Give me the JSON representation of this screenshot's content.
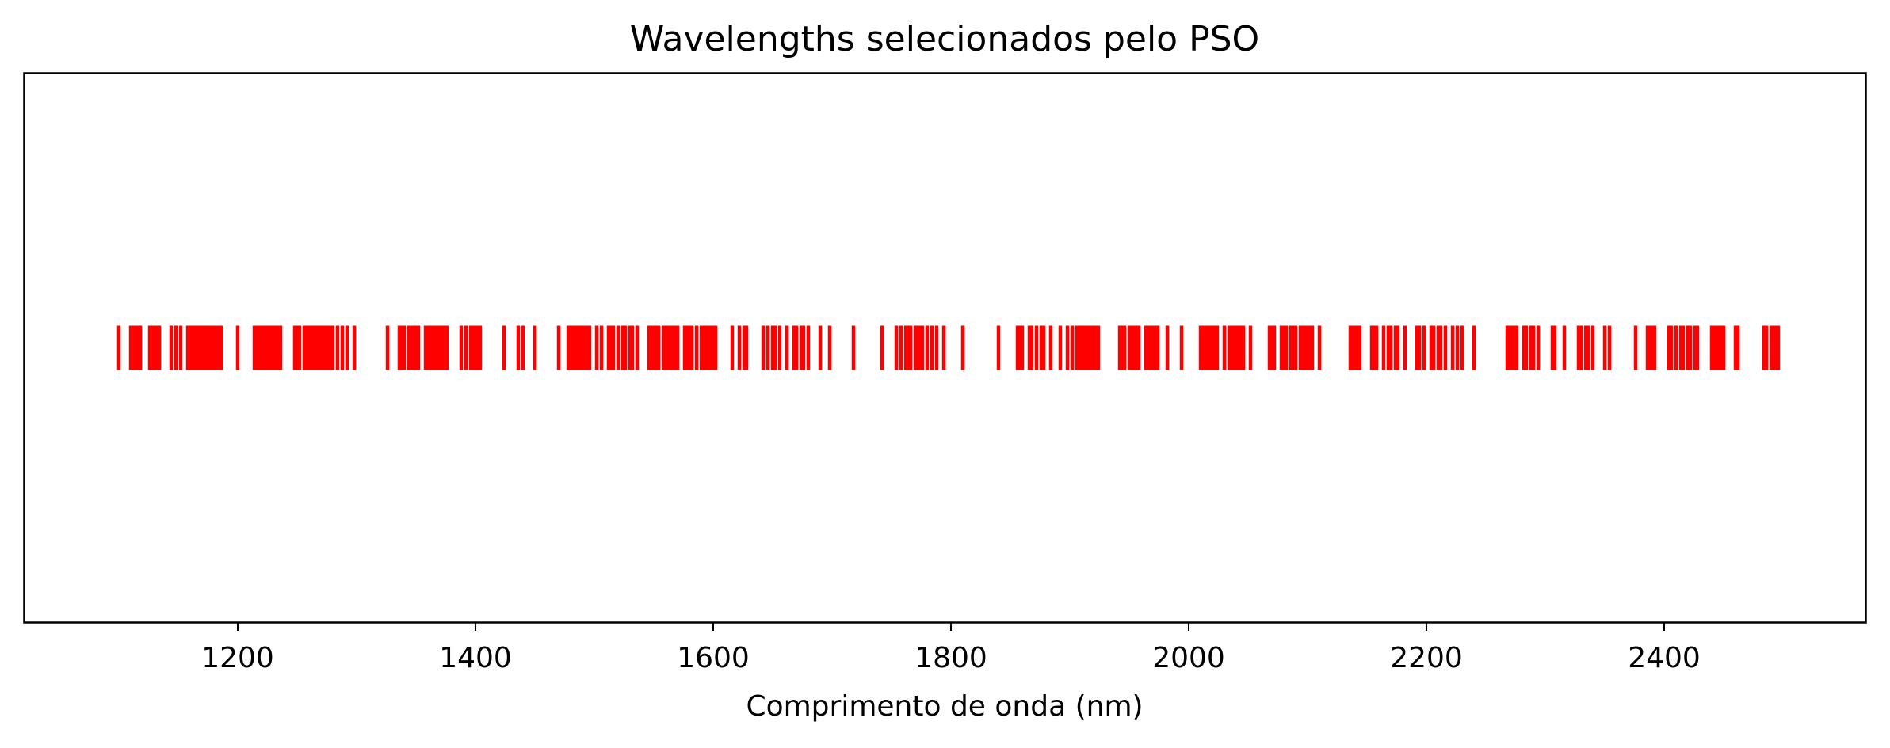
{
  "chart_data": {
    "type": "scatter",
    "mark": "event-lines",
    "title": "Wavelengths selecionados pelo PSO",
    "xlabel": "Comprimento de onda (nm)",
    "ylabel": "",
    "xlim": [
      1020,
      2570
    ],
    "xticks": [
      1200,
      1400,
      1600,
      1800,
      2000,
      2200,
      2400
    ],
    "yticks_visible": false,
    "grid": false,
    "legend": "none",
    "color": "#ff0000",
    "series": [
      {
        "x": [
          1100,
          1110,
          1112,
          1114,
          1116,
          1118,
          1126,
          1128,
          1130,
          1132,
          1134,
          1144,
          1148,
          1152,
          1158,
          1160,
          1162,
          1164,
          1166,
          1168,
          1170,
          1172,
          1174,
          1176,
          1178,
          1180,
          1182,
          1184,
          1186,
          1200,
          1214,
          1216,
          1218,
          1220,
          1222,
          1224,
          1226,
          1228,
          1230,
          1232,
          1234,
          1236,
          1248,
          1250,
          1252,
          1256,
          1258,
          1260,
          1262,
          1264,
          1266,
          1268,
          1270,
          1272,
          1274,
          1276,
          1278,
          1280,
          1284,
          1288,
          1292,
          1298,
          1326,
          1336,
          1338,
          1340,
          1344,
          1346,
          1348,
          1350,
          1352,
          1358,
          1360,
          1362,
          1364,
          1366,
          1368,
          1370,
          1372,
          1374,
          1376,
          1388,
          1392,
          1396,
          1398,
          1400,
          1402,
          1404,
          1424,
          1436,
          1440,
          1450,
          1470,
          1478,
          1480,
          1482,
          1484,
          1486,
          1488,
          1490,
          1492,
          1494,
          1496,
          1502,
          1506,
          1512,
          1514,
          1516,
          1520,
          1524,
          1526,
          1530,
          1532,
          1536,
          1546,
          1548,
          1550,
          1552,
          1554,
          1558,
          1560,
          1562,
          1564,
          1566,
          1568,
          1570,
          1576,
          1578,
          1580,
          1582,
          1586,
          1590,
          1592,
          1594,
          1596,
          1598,
          1600,
          1602,
          1616,
          1622,
          1626,
          1628,
          1642,
          1646,
          1650,
          1652,
          1656,
          1662,
          1668,
          1670,
          1674,
          1676,
          1680,
          1690,
          1698,
          1718,
          1742,
          1754,
          1758,
          1762,
          1764,
          1766,
          1770,
          1772,
          1774,
          1776,
          1780,
          1784,
          1788,
          1794,
          1810,
          1840,
          1856,
          1858,
          1860,
          1866,
          1868,
          1872,
          1876,
          1878,
          1884,
          1892,
          1898,
          1902,
          1906,
          1908,
          1910,
          1912,
          1914,
          1916,
          1918,
          1920,
          1922,
          1924,
          1942,
          1944,
          1946,
          1950,
          1952,
          1954,
          1956,
          1958,
          1964,
          1966,
          1968,
          1970,
          1972,
          1974,
          1982,
          1994,
          2010,
          2012,
          2014,
          2016,
          2018,
          2020,
          2022,
          2024,
          2030,
          2034,
          2036,
          2038,
          2040,
          2042,
          2044,
          2046,
          2052,
          2068,
          2070,
          2072,
          2078,
          2080,
          2082,
          2086,
          2088,
          2090,
          2094,
          2096,
          2098,
          2100,
          2102,
          2104,
          2110,
          2136,
          2138,
          2140,
          2142,
          2144,
          2154,
          2156,
          2158,
          2164,
          2168,
          2170,
          2174,
          2176,
          2182,
          2192,
          2194,
          2198,
          2204,
          2206,
          2210,
          2212,
          2216,
          2222,
          2226,
          2230,
          2240,
          2268,
          2270,
          2272,
          2274,
          2276,
          2282,
          2284,
          2288,
          2290,
          2294,
          2306,
          2308,
          2316,
          2328,
          2330,
          2334,
          2336,
          2340,
          2350,
          2354,
          2376,
          2386,
          2388,
          2390,
          2392,
          2404,
          2406,
          2410,
          2414,
          2416,
          2420,
          2422,
          2426,
          2428,
          2440,
          2442,
          2444,
          2446,
          2448,
          2450,
          2460,
          2462,
          2484,
          2486,
          2490,
          2492,
          2494,
          2496
        ]
      }
    ]
  }
}
